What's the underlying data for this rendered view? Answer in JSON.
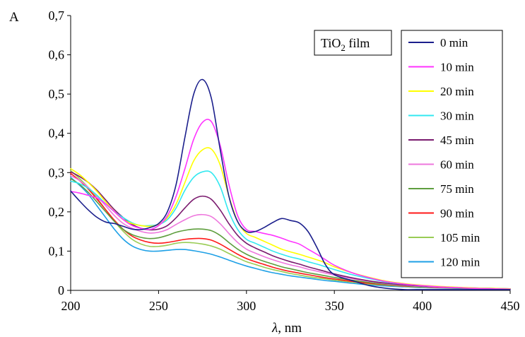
{
  "chart_data": {
    "type": "line",
    "ylabel": "A",
    "xlabel_symbol": "λ",
    "xlabel_unit": ", nm",
    "annotation": {
      "main": "TiO",
      "sub": "2",
      "tail": " film"
    },
    "xlim": [
      200,
      450
    ],
    "ylim": [
      0,
      0.7
    ],
    "x_ticks": [
      200,
      250,
      300,
      350,
      400,
      450
    ],
    "y_ticks": [
      0,
      0.1,
      0.2,
      0.3,
      0.4,
      0.5,
      0.6,
      0.7
    ],
    "y_tick_labels": [
      "0",
      "0,1",
      "0,2",
      "0,3",
      "0,4",
      "0,5",
      "0,6",
      "0,7"
    ],
    "grid": false,
    "legend_position": "right",
    "x": [
      200,
      205,
      210,
      215,
      220,
      225,
      230,
      235,
      240,
      245,
      250,
      255,
      260,
      265,
      270,
      275,
      280,
      285,
      290,
      295,
      300,
      305,
      310,
      315,
      320,
      325,
      330,
      335,
      340,
      345,
      350,
      360,
      370,
      380,
      390,
      400,
      410,
      420,
      430,
      440,
      450
    ],
    "series": [
      {
        "name": "0 min",
        "color": "#1b1f8c",
        "values": [
          0.253,
          0.228,
          0.205,
          0.186,
          0.174,
          0.17,
          0.163,
          0.156,
          0.155,
          0.16,
          0.17,
          0.2,
          0.27,
          0.39,
          0.5,
          0.537,
          0.49,
          0.36,
          0.24,
          0.175,
          0.15,
          0.15,
          0.16,
          0.173,
          0.183,
          0.178,
          0.172,
          0.15,
          0.11,
          0.065,
          0.04,
          0.025,
          0.012,
          0.005,
          0.002,
          0.002,
          0.002,
          0.002,
          0.002,
          0.002,
          0.002
        ]
      },
      {
        "name": "10 min",
        "color": "#ff33ff",
        "values": [
          0.252,
          0.248,
          0.242,
          0.235,
          0.22,
          0.2,
          0.18,
          0.165,
          0.158,
          0.155,
          0.165,
          0.19,
          0.24,
          0.31,
          0.385,
          0.428,
          0.43,
          0.37,
          0.27,
          0.19,
          0.155,
          0.15,
          0.145,
          0.14,
          0.133,
          0.125,
          0.118,
          0.105,
          0.092,
          0.078,
          0.064,
          0.045,
          0.032,
          0.022,
          0.016,
          0.012,
          0.009,
          0.007,
          0.005,
          0.004,
          0.003
        ]
      },
      {
        "name": "20 min",
        "color": "#ffff00",
        "values": [
          0.31,
          0.295,
          0.275,
          0.252,
          0.225,
          0.2,
          0.18,
          0.17,
          0.165,
          0.163,
          0.168,
          0.185,
          0.22,
          0.275,
          0.33,
          0.358,
          0.36,
          0.32,
          0.24,
          0.175,
          0.145,
          0.135,
          0.125,
          0.115,
          0.105,
          0.098,
          0.092,
          0.085,
          0.078,
          0.07,
          0.06,
          0.045,
          0.033,
          0.023,
          0.017,
          0.013,
          0.01,
          0.008,
          0.006,
          0.005,
          0.004
        ]
      },
      {
        "name": "30 min",
        "color": "#33e8f0",
        "values": [
          0.278,
          0.272,
          0.26,
          0.242,
          0.22,
          0.2,
          0.185,
          0.172,
          0.165,
          0.165,
          0.168,
          0.18,
          0.21,
          0.255,
          0.288,
          0.302,
          0.3,
          0.265,
          0.2,
          0.155,
          0.13,
          0.12,
          0.11,
          0.1,
          0.092,
          0.085,
          0.08,
          0.073,
          0.067,
          0.06,
          0.053,
          0.04,
          0.03,
          0.021,
          0.016,
          0.012,
          0.009,
          0.007,
          0.006,
          0.005,
          0.004
        ]
      },
      {
        "name": "45 min",
        "color": "#7a1a6e",
        "values": [
          0.302,
          0.29,
          0.275,
          0.255,
          0.23,
          0.205,
          0.185,
          0.168,
          0.158,
          0.154,
          0.156,
          0.165,
          0.185,
          0.21,
          0.232,
          0.24,
          0.232,
          0.205,
          0.17,
          0.14,
          0.12,
          0.108,
          0.098,
          0.088,
          0.08,
          0.073,
          0.067,
          0.06,
          0.054,
          0.048,
          0.042,
          0.032,
          0.024,
          0.018,
          0.014,
          0.011,
          0.009,
          0.007,
          0.006,
          0.005,
          0.004
        ]
      },
      {
        "name": "60 min",
        "color": "#ee77dd",
        "values": [
          0.292,
          0.28,
          0.262,
          0.24,
          0.215,
          0.19,
          0.17,
          0.158,
          0.15,
          0.146,
          0.148,
          0.155,
          0.168,
          0.18,
          0.19,
          0.193,
          0.188,
          0.17,
          0.145,
          0.122,
          0.105,
          0.095,
          0.086,
          0.078,
          0.071,
          0.065,
          0.06,
          0.054,
          0.049,
          0.044,
          0.039,
          0.03,
          0.023,
          0.017,
          0.013,
          0.01,
          0.008,
          0.007,
          0.006,
          0.005,
          0.004
        ]
      },
      {
        "name": "75 min",
        "color": "#5e9e3e",
        "values": [
          0.285,
          0.27,
          0.25,
          0.225,
          0.2,
          0.175,
          0.155,
          0.142,
          0.135,
          0.132,
          0.134,
          0.14,
          0.148,
          0.153,
          0.156,
          0.156,
          0.152,
          0.14,
          0.122,
          0.105,
          0.092,
          0.082,
          0.074,
          0.067,
          0.06,
          0.055,
          0.05,
          0.045,
          0.041,
          0.037,
          0.033,
          0.026,
          0.02,
          0.015,
          0.012,
          0.009,
          0.008,
          0.006,
          0.005,
          0.004,
          0.004
        ]
      },
      {
        "name": "90 min",
        "color": "#ff1a1a",
        "values": [
          0.298,
          0.28,
          0.258,
          0.232,
          0.205,
          0.178,
          0.155,
          0.138,
          0.128,
          0.122,
          0.12,
          0.122,
          0.126,
          0.13,
          0.132,
          0.132,
          0.128,
          0.118,
          0.105,
          0.092,
          0.081,
          0.073,
          0.066,
          0.059,
          0.053,
          0.048,
          0.044,
          0.04,
          0.036,
          0.032,
          0.029,
          0.023,
          0.018,
          0.014,
          0.011,
          0.009,
          0.007,
          0.006,
          0.005,
          0.004,
          0.003
        ]
      },
      {
        "name": "105 min",
        "color": "#99cc55",
        "values": [
          0.305,
          0.285,
          0.262,
          0.235,
          0.205,
          0.175,
          0.15,
          0.13,
          0.118,
          0.112,
          0.112,
          0.115,
          0.12,
          0.122,
          0.121,
          0.118,
          0.113,
          0.105,
          0.094,
          0.083,
          0.073,
          0.066,
          0.059,
          0.053,
          0.048,
          0.043,
          0.039,
          0.035,
          0.032,
          0.029,
          0.026,
          0.021,
          0.016,
          0.013,
          0.01,
          0.008,
          0.007,
          0.006,
          0.005,
          0.004,
          0.003
        ]
      },
      {
        "name": "120 min",
        "color": "#1ea0e6",
        "values": [
          0.288,
          0.268,
          0.245,
          0.215,
          0.185,
          0.155,
          0.13,
          0.113,
          0.104,
          0.1,
          0.1,
          0.102,
          0.104,
          0.104,
          0.101,
          0.097,
          0.092,
          0.085,
          0.077,
          0.069,
          0.062,
          0.056,
          0.05,
          0.045,
          0.041,
          0.037,
          0.034,
          0.031,
          0.028,
          0.025,
          0.023,
          0.018,
          0.014,
          0.011,
          0.009,
          0.007,
          0.006,
          0.005,
          0.004,
          0.003,
          0.003
        ]
      }
    ]
  }
}
